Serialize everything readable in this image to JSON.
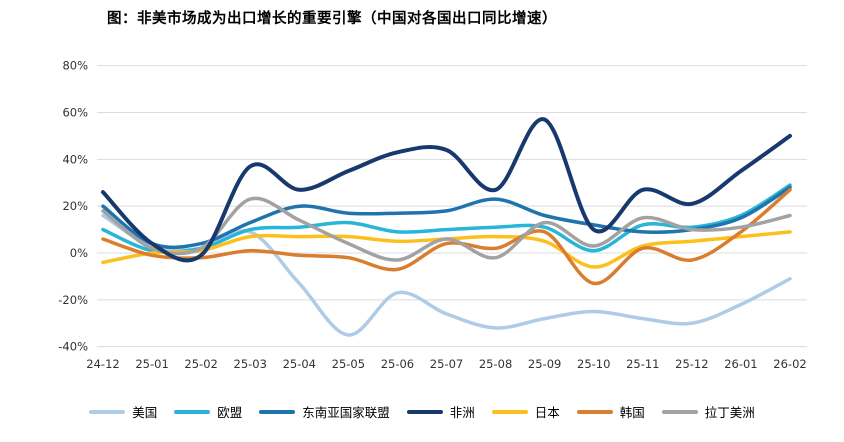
{
  "title": "图：非美市场成为出口增长的重要引擎（中国对各国出口同比增速）",
  "chart_data": {
    "type": "line",
    "categories": [
      "24-12",
      "25-01",
      "25-02",
      "25-03",
      "25-04",
      "25-05",
      "25-06",
      "25-07",
      "25-08",
      "25-09",
      "25-10",
      "25-11",
      "25-12",
      "26-01",
      "26-02"
    ],
    "series": [
      {
        "id": "usa",
        "name": "美国",
        "color": "#aecbe8",
        "width": 3.5,
        "values": [
          16,
          3,
          2,
          9,
          -13,
          -35,
          -17,
          -26,
          -32,
          -28,
          -25,
          -28,
          -30,
          -22,
          -11
        ]
      },
      {
        "id": "eu",
        "name": "欧盟",
        "color": "#29b5d8",
        "width": 3.5,
        "values": [
          10,
          1,
          2,
          10,
          11,
          13,
          9,
          10,
          11,
          11,
          1,
          12,
          11,
          16,
          29
        ]
      },
      {
        "id": "asean",
        "name": "东南亚国家联盟",
        "color": "#1f74ad",
        "width": 3.5,
        "values": [
          20,
          4,
          4,
          13,
          20,
          17,
          17,
          18,
          23,
          16,
          12,
          9,
          10,
          15,
          28
        ]
      },
      {
        "id": "japan",
        "name": "日本",
        "color": "#fcc01e",
        "width": 3.5,
        "values": [
          -4,
          0,
          1,
          7,
          7,
          7,
          5,
          6,
          7,
          5,
          -6,
          3,
          5,
          7,
          9
        ]
      },
      {
        "id": "korea",
        "name": "韩国",
        "color": "#d97e2e",
        "width": 3.5,
        "values": [
          6,
          -1,
          -2,
          1,
          -1,
          -2,
          -7,
          4,
          2,
          9,
          -13,
          2,
          -3,
          9,
          27
        ]
      },
      {
        "id": "latin-america",
        "name": "拉丁美洲",
        "color": "#a2a2a2",
        "width": 3.5,
        "values": [
          18,
          2,
          2,
          23,
          14,
          4,
          -3,
          6,
          -2,
          13,
          3,
          15,
          10,
          11,
          16
        ]
      },
      {
        "id": "africa",
        "name": "非洲",
        "color": "#17396e",
        "width": 4,
        "values": [
          26,
          4,
          -1,
          37,
          27,
          35,
          43,
          44,
          27,
          57,
          10,
          27,
          21,
          35,
          50
        ]
      }
    ],
    "legend_order": [
      "usa",
      "eu",
      "asean",
      "africa",
      "japan",
      "korea",
      "latin-america"
    ],
    "y_ticks": [
      80,
      60,
      40,
      20,
      0,
      -20,
      -40
    ],
    "y_tick_suffix": "%",
    "ylim": [
      -40,
      80
    ],
    "grid": true,
    "legend_position": "bottom",
    "background": "#ffffff",
    "gridline_color": "#dcdcdc"
  }
}
